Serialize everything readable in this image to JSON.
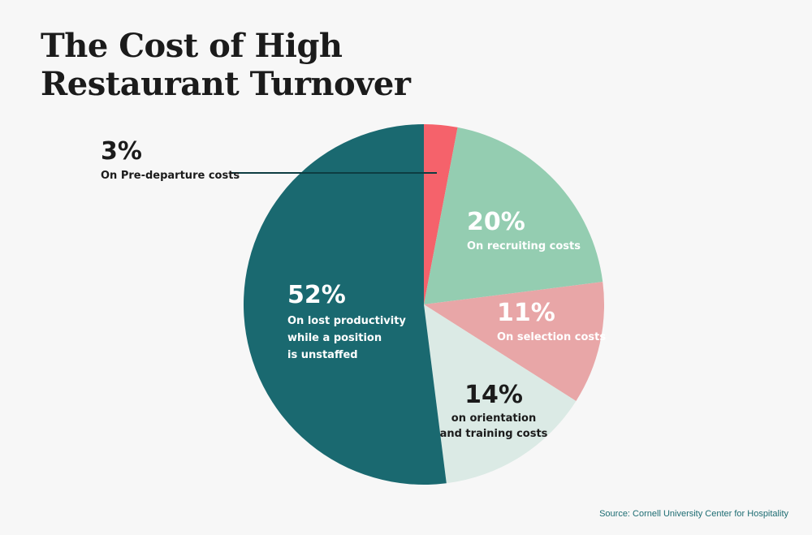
{
  "chart_data": {
    "type": "pie",
    "title": "The Cost of High Restaurant Turnover",
    "title_lines": [
      "The Cost of High",
      "Restaurant Turnover"
    ],
    "unit": "%",
    "slices": [
      {
        "key": "pre_departure",
        "label": "3%",
        "value": 3,
        "description": [
          "On Pre-departure costs"
        ],
        "color": "#f5626b",
        "text_color": "#1b1b1b"
      },
      {
        "key": "recruiting",
        "label": "20%",
        "value": 20,
        "description": [
          "On recruiting costs"
        ],
        "color": "#94cdb1",
        "text_color": "#ffffff"
      },
      {
        "key": "selection",
        "label": "11%",
        "value": 11,
        "description": [
          "On selection costs"
        ],
        "color": "#e8a6a7",
        "text_color": "#ffffff"
      },
      {
        "key": "orientation_training",
        "label": "14%",
        "value": 14,
        "description": [
          "on orientation",
          "and training costs"
        ],
        "color": "#dbeae5",
        "text_color": "#1b1b1b"
      },
      {
        "key": "lost_productivity",
        "label": "52%",
        "value": 52,
        "description": [
          "On lost productivity",
          "while a position",
          "is unstaffed"
        ],
        "color": "#1a6970",
        "text_color": "#ffffff"
      }
    ],
    "leader_line_color": "#0d3d42",
    "source": "Source: Cornell University Center for Hospitality"
  }
}
